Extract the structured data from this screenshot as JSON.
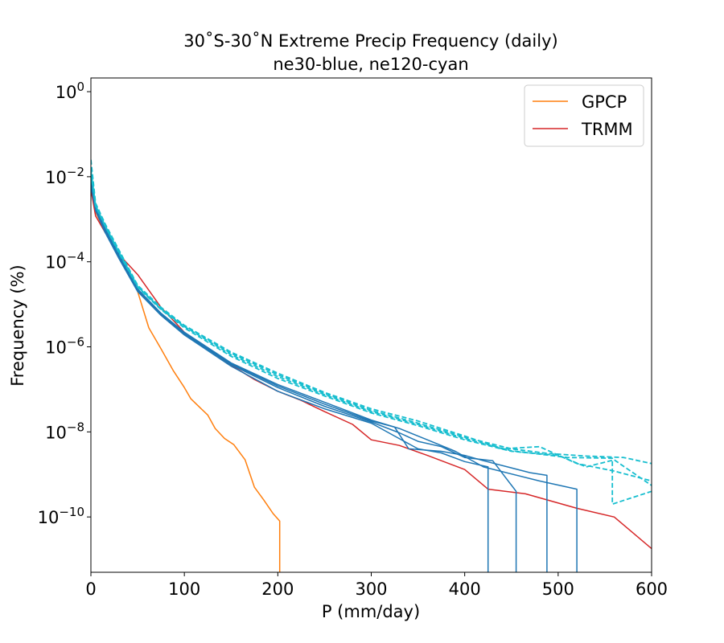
{
  "chart_data": {
    "type": "line",
    "title": "30˚S-30˚N Extreme Precip Frequency (daily)",
    "subtitle": "ne30-blue, ne120-cyan",
    "xlabel": "P (mm/day)",
    "ylabel": "Frequency (%)",
    "xlim": [
      0,
      600
    ],
    "ylim": [
      5e-12,
      2.1
    ],
    "yscale": "log",
    "xticks": [
      "0",
      "100",
      "200",
      "300",
      "400",
      "500",
      "600"
    ],
    "yticks": [
      {
        "base": "10",
        "exp": "0"
      },
      {
        "base": "10",
        "exp": "−2"
      },
      {
        "base": "10",
        "exp": "−4"
      },
      {
        "base": "10",
        "exp": "−6"
      },
      {
        "base": "10",
        "exp": "−8"
      },
      {
        "base": "10",
        "exp": "−10"
      }
    ],
    "legend_position": "top-right",
    "legend": [
      {
        "label": "GPCP",
        "color": "#ff7f0e"
      },
      {
        "label": "TRMM",
        "color": "#d62728"
      }
    ],
    "colors": {
      "ne30": "#1f77b4",
      "ne120": "#17becf",
      "gpcp": "#ff7f0e",
      "trmm": "#d62728"
    },
    "series": [
      {
        "color": "#ff7f0e",
        "style": "solid",
        "x": [
          0,
          5,
          12,
          25,
          40,
          50,
          62,
          75,
          88,
          100,
          107,
          118,
          125,
          133,
          143,
          153,
          165,
          175,
          185,
          195,
          202,
          202
        ],
        "y": [
          0.005,
          0.0015,
          0.0007,
          0.00025,
          6e-05,
          2e-05,
          2.8e-06,
          9e-07,
          2.8e-07,
          1.1e-07,
          6e-08,
          3.5e-08,
          2.5e-08,
          1.2e-08,
          7e-09,
          5e-09,
          2.2e-09,
          5e-10,
          2.5e-10,
          1.2e-10,
          8e-11,
          5e-12
        ]
      },
      {
        "color": "#d62728",
        "style": "solid",
        "x": [
          0,
          5,
          15,
          30,
          50,
          75,
          100,
          125,
          150,
          175,
          200,
          225,
          250,
          280,
          300,
          330,
          360,
          400,
          425,
          465,
          520,
          560,
          600
        ],
        "y": [
          0.005,
          0.0012,
          0.0005,
          0.00015,
          5e-05,
          8.5e-06,
          2.2e-06,
          9e-07,
          3.7e-07,
          1.7e-07,
          9e-08,
          5.5e-08,
          3e-08,
          1.5e-08,
          6.5e-09,
          4.8e-09,
          2.8e-09,
          1.3e-09,
          4.5e-10,
          3.5e-10,
          1.6e-10,
          1e-10,
          1.8e-11
        ]
      },
      {
        "color": "#1f77b4",
        "style": "solid",
        "x": [
          0,
          5,
          15,
          30,
          50,
          75,
          100,
          150,
          200,
          250,
          300,
          325,
          350,
          375,
          400,
          425,
          425
        ],
        "y": [
          0.006,
          0.0016,
          0.0005,
          0.00012,
          2e-05,
          5.5e-06,
          1.9e-06,
          3.5e-07,
          9e-08,
          3.5e-08,
          1.6e-08,
          8e-09,
          4e-09,
          3.2e-09,
          2e-09,
          1.5e-09,
          5e-12
        ]
      },
      {
        "color": "#1f77b4",
        "style": "solid",
        "x": [
          0,
          5,
          15,
          30,
          50,
          75,
          100,
          150,
          200,
          250,
          300,
          330,
          350,
          375,
          400,
          430,
          455,
          455
        ],
        "y": [
          0.007,
          0.0017,
          0.00055,
          0.00013,
          2.1e-05,
          5.8e-06,
          2e-06,
          3.8e-07,
          1.1e-07,
          4e-08,
          1.7e-08,
          9.5e-09,
          6e-09,
          4.5e-09,
          2.5e-09,
          2.1e-09,
          4e-10,
          5e-12
        ]
      },
      {
        "color": "#1f77b4",
        "style": "solid",
        "x": [
          0,
          5,
          15,
          30,
          50,
          75,
          100,
          150,
          200,
          250,
          300,
          325,
          340,
          375,
          400,
          420,
          470,
          488,
          488
        ],
        "y": [
          0.008,
          0.0018,
          0.0006,
          0.00014,
          2.2e-05,
          6e-06,
          2.1e-06,
          4e-07,
          1.2e-07,
          4.5e-08,
          1.8e-08,
          1.3e-08,
          4e-09,
          3.5e-09,
          2.8e-09,
          2.1e-09,
          1.1e-09,
          9.5e-10,
          5e-12
        ]
      },
      {
        "color": "#1f77b4",
        "style": "solid",
        "x": [
          0,
          5,
          15,
          30,
          50,
          75,
          100,
          150,
          200,
          250,
          300,
          330,
          360,
          390,
          420,
          480,
          520,
          520
        ],
        "y": [
          0.009,
          0.0019,
          0.00062,
          0.00015,
          2.3e-05,
          6.2e-06,
          2.2e-06,
          4.2e-07,
          1.3e-07,
          5e-08,
          1.9e-08,
          1.2e-08,
          6.5e-09,
          3.5e-09,
          1.5e-09,
          7e-10,
          4.5e-10,
          5e-12
        ]
      },
      {
        "color": "#17becf",
        "style": "dashed",
        "x": [
          0,
          5,
          15,
          30,
          50,
          75,
          100,
          150,
          200,
          250,
          300,
          350,
          400,
          450,
          500,
          530,
          560,
          600
        ],
        "y": [
          0.012,
          0.002,
          0.0007,
          0.00016,
          2.5e-05,
          7.5e-06,
          2.8e-06,
          6e-07,
          1.8e-07,
          7e-08,
          2.8e-08,
          1.4e-08,
          6.5e-09,
          3.5e-09,
          2.8e-09,
          1.5e-09,
          2.2e-09,
          5.5e-10
        ]
      },
      {
        "color": "#17becf",
        "style": "dashed",
        "x": [
          0,
          5,
          15,
          30,
          50,
          75,
          100,
          150,
          200,
          250,
          300,
          350,
          400,
          450,
          480,
          510,
          558,
          558,
          600
        ],
        "y": [
          0.014,
          0.0021,
          0.00072,
          0.00017,
          2.6e-05,
          7.8e-06,
          3e-06,
          6.5e-07,
          2e-07,
          7.5e-08,
          3e-08,
          1.5e-08,
          7e-09,
          3.6e-09,
          3e-09,
          2.5e-09,
          2.4e-09,
          2e-10,
          4e-10
        ]
      },
      {
        "color": "#17becf",
        "style": "dashed",
        "x": [
          0,
          5,
          15,
          30,
          50,
          75,
          100,
          150,
          200,
          250,
          300,
          350,
          400,
          450,
          490,
          530,
          570,
          600
        ],
        "y": [
          0.016,
          0.0022,
          0.00075,
          0.00018,
          2.7e-05,
          8e-06,
          3.1e-06,
          7e-07,
          2.2e-07,
          8e-08,
          3.2e-08,
          1.6e-08,
          7.5e-09,
          4e-09,
          3.1e-09,
          2.7e-09,
          2.5e-09,
          1.8e-09
        ]
      },
      {
        "color": "#17becf",
        "style": "dashed",
        "x": [
          0,
          5,
          15,
          30,
          50,
          75,
          100,
          150,
          200,
          250,
          300,
          350,
          400,
          440,
          480,
          520,
          560,
          600
        ],
        "y": [
          0.025,
          0.0024,
          0.0008,
          0.00019,
          2.8e-05,
          8.5e-06,
          3.2e-06,
          7.5e-07,
          2.4e-07,
          8.5e-08,
          3.5e-08,
          1.8e-08,
          8e-09,
          4e-09,
          4.5e-09,
          1.8e-09,
          1.2e-09,
          7e-10
        ]
      }
    ]
  }
}
